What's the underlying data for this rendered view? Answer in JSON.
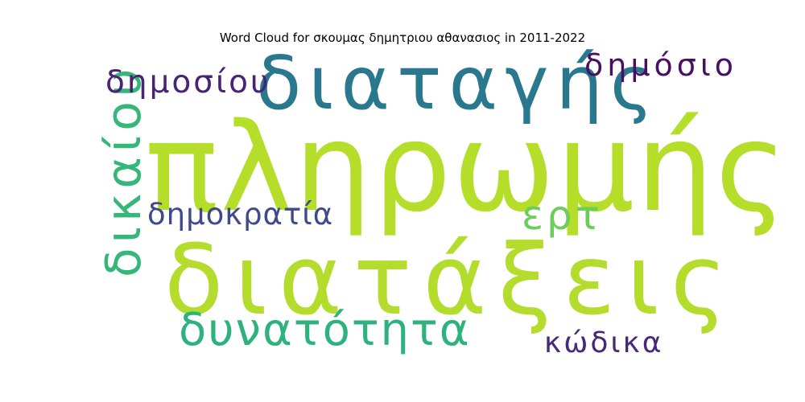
{
  "title": "Word Cloud for σκουμας δημητριου αθανασιος in 2011-2022",
  "colors": {
    "background": "#ffffff",
    "title": "#000000"
  },
  "words": {
    "plirwmis": {
      "text": "πληρωμής",
      "color": "#b5de2b"
    },
    "diatakseis": {
      "text": "διατάξεις",
      "color": "#b3dc2c"
    },
    "diatagis": {
      "text": "διαταγής",
      "color": "#2a788e"
    },
    "dikaiou": {
      "text": "δικαίου",
      "color": "#35b779"
    },
    "dynatotita": {
      "text": "δυνατότητα",
      "color": "#2db27d"
    },
    "ert": {
      "text": "ερτ",
      "color": "#6ccd5a"
    },
    "dimokratia": {
      "text": "δημοκρατία",
      "color": "#3e4a89"
    },
    "dimosiou": {
      "text": "δημοσίου",
      "color": "#482475"
    },
    "dimosio": {
      "text": "δημόσιο",
      "color": "#471063"
    },
    "kodika": {
      "text": "κώδικα",
      "color": "#482878"
    }
  }
}
